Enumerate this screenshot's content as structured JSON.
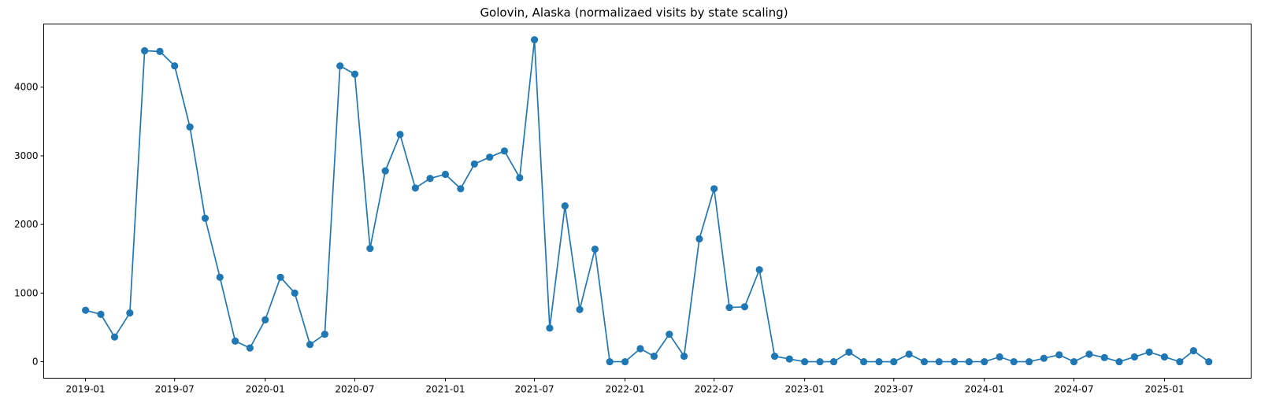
{
  "chart_data": {
    "type": "line",
    "title": "Golovin, Alaska (normalizaed visits by state scaling)",
    "xlabel": "",
    "ylabel": "",
    "xlim": [
      "2018-10-08",
      "2025-06-26"
    ],
    "ylim": [
      -240,
      4920
    ],
    "grid": false,
    "legend": "none",
    "color": "#1f77b4",
    "x_ticks": [
      "2019-01",
      "2019-07",
      "2020-01",
      "2020-07",
      "2021-01",
      "2021-07",
      "2022-01",
      "2022-07",
      "2023-01",
      "2023-07",
      "2024-01",
      "2024-07",
      "2025-01"
    ],
    "y_ticks": [
      0,
      1000,
      2000,
      3000,
      4000
    ],
    "x": [
      "2019-01",
      "2019-02",
      "2019-03",
      "2019-04",
      "2019-05",
      "2019-06",
      "2019-07",
      "2019-08",
      "2019-09",
      "2019-10",
      "2019-11",
      "2019-12",
      "2020-01",
      "2020-02",
      "2020-03",
      "2020-04",
      "2020-05",
      "2020-06",
      "2020-07",
      "2020-08",
      "2020-09",
      "2020-10",
      "2020-11",
      "2020-12",
      "2021-01",
      "2021-02",
      "2021-03",
      "2021-04",
      "2021-05",
      "2021-06",
      "2021-07",
      "2021-08",
      "2021-09",
      "2021-10",
      "2021-11",
      "2021-12",
      "2022-01",
      "2022-02",
      "2022-03",
      "2022-04",
      "2022-05",
      "2022-06",
      "2022-07",
      "2022-08",
      "2022-09",
      "2022-10",
      "2022-11",
      "2022-12",
      "2023-01",
      "2023-02",
      "2023-03",
      "2023-04",
      "2023-05",
      "2023-06",
      "2023-07",
      "2023-08",
      "2023-09",
      "2023-10",
      "2023-11",
      "2023-12",
      "2024-01",
      "2024-02",
      "2024-03",
      "2024-04",
      "2024-05",
      "2024-06",
      "2024-07",
      "2024-08",
      "2024-09",
      "2024-10",
      "2024-11",
      "2024-12",
      "2025-01",
      "2025-02",
      "2025-03",
      "2025-04"
    ],
    "series": [
      {
        "values": [
          750,
          690,
          360,
          710,
          4530,
          4520,
          4310,
          3420,
          2090,
          1230,
          300,
          200,
          610,
          1230,
          1000,
          250,
          400,
          4310,
          4190,
          1650,
          2780,
          3310,
          2530,
          2670,
          2730,
          2520,
          2880,
          2980,
          3070,
          2680,
          4690,
          490,
          2270,
          760,
          1640,
          0,
          0,
          190,
          80,
          400,
          80,
          1790,
          2520,
          790,
          800,
          1340,
          80,
          40,
          0,
          0,
          0,
          140,
          0,
          0,
          0,
          110,
          0,
          0,
          0,
          0,
          0,
          70,
          0,
          0,
          50,
          100,
          0,
          110,
          60,
          0,
          70,
          140,
          70,
          0,
          160,
          0
        ]
      }
    ]
  }
}
